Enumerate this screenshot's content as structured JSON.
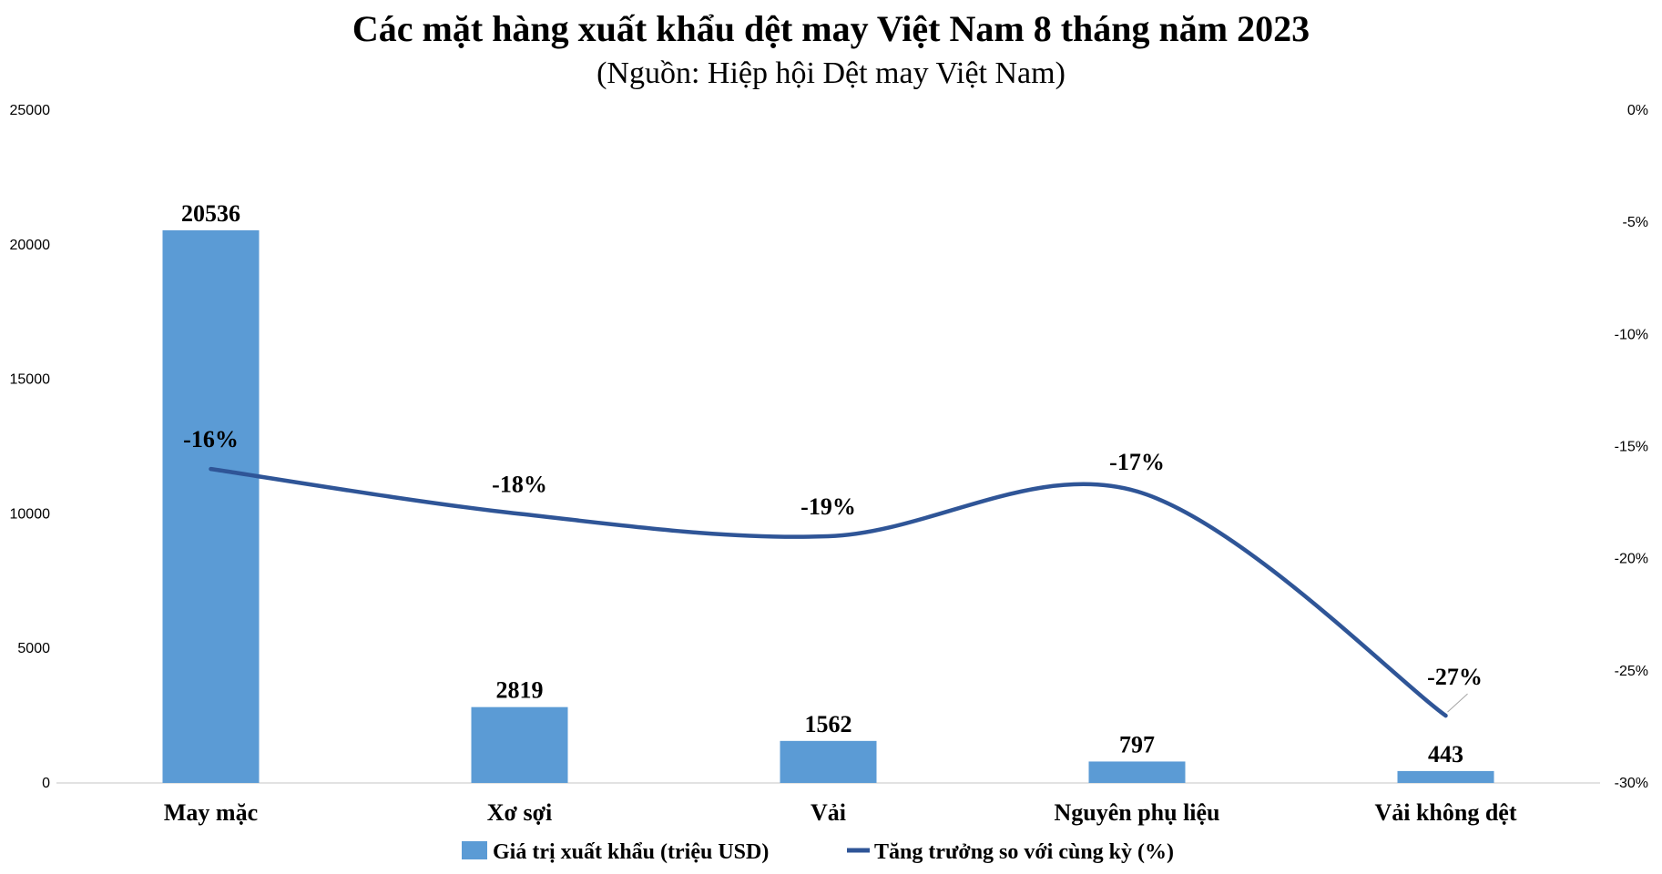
{
  "chart_data": {
    "type": "bar",
    "title": "Các mặt hàng xuất khẩu dệt may Việt Nam 8 tháng năm 2023",
    "subtitle": "(Nguồn: Hiệp hội Dệt may Việt Nam)",
    "categories": [
      "May mặc",
      "Xơ sợi",
      "Vải",
      "Nguyên phụ liệu",
      "Vải không dệt"
    ],
    "series": [
      {
        "name": "Giá trị xuất khẩu (triệu USD)",
        "type": "bar",
        "axis": "left",
        "values": [
          20536,
          2819,
          1562,
          797,
          443
        ],
        "labels": [
          "20536",
          "2819",
          "1562",
          "797",
          "443"
        ],
        "color": "#5b9bd5"
      },
      {
        "name": "Tăng trưởng so với cùng kỳ (%)",
        "type": "line",
        "axis": "right",
        "values": [
          -16,
          -18,
          -19,
          -17,
          -27
        ],
        "labels": [
          "-16%",
          "-18%",
          "-19%",
          "-17%",
          "-27%"
        ],
        "color": "#2f5597"
      }
    ],
    "y_left": {
      "range": [
        0,
        25000
      ],
      "ticks": [
        0,
        5000,
        10000,
        15000,
        20000,
        25000
      ],
      "tick_labels": [
        "0",
        "5000",
        "10000",
        "15000",
        "20000",
        "25000"
      ]
    },
    "y_right": {
      "range": [
        -30,
        0
      ],
      "ticks": [
        0,
        -5,
        -10,
        -15,
        -20,
        -25,
        -30
      ],
      "tick_labels": [
        "0%",
        "-5%",
        "-10%",
        "-15%",
        "-20%",
        "-25%",
        "-30%"
      ]
    },
    "grid": false,
    "legend_position": "bottom"
  }
}
